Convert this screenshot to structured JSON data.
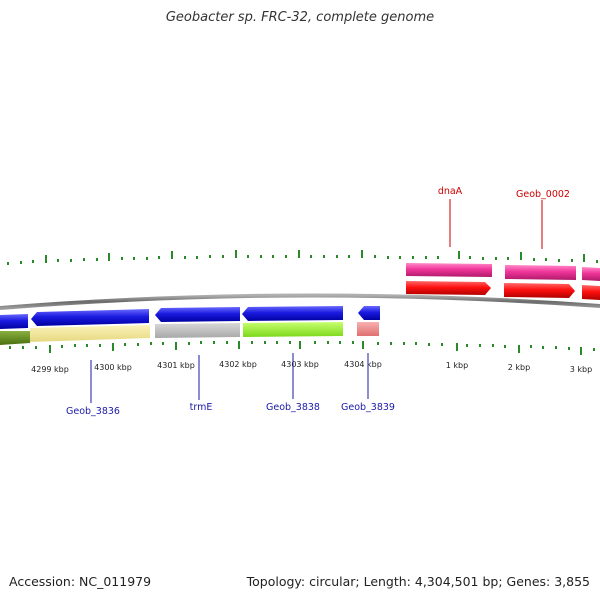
{
  "title": "Geobacter sp. FRC-32, complete genome",
  "footer": {
    "accession": "Accession: NC_011979",
    "summary": "Topology: circular; Length: 4,304,501 bp; Genes: 3,855"
  },
  "ticks": [
    "4299 kbp",
    "4300 kbp",
    "4301 kbp",
    "4302 kbp",
    "4303 kbp",
    "4304 kbp",
    "1 kbp",
    "2 kbp",
    "3 kbp"
  ],
  "genes_top": [
    {
      "name": "dnaA",
      "color": "#cc0000"
    },
    {
      "name": "Geob_0002",
      "color": "#cc0000"
    }
  ],
  "genes_bottom": [
    {
      "name": "Geob_3836",
      "color": "#1a1aa6"
    },
    {
      "name": "trmE",
      "color": "#1a1aa6"
    },
    {
      "name": "Geob_3838",
      "color": "#1a1aa6"
    },
    {
      "name": "Geob_3839",
      "color": "#1a1aa6"
    }
  ],
  "colors": {
    "cds_strand": "#ff1a1a",
    "gene_magenta": "#f0359a",
    "gene_blue": "#1010d0",
    "backbone": "#7a7a7a",
    "ticks": "#2a8a2a"
  }
}
